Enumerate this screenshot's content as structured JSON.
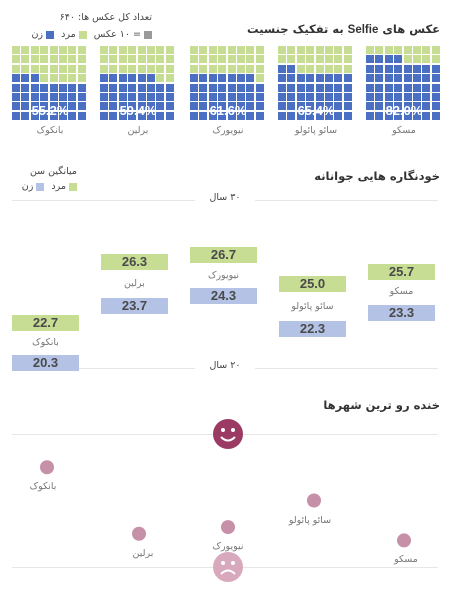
{
  "colors": {
    "male": "#c7dd94",
    "female": "#4b6fc2",
    "unit": "#9a9a9a",
    "female_bar": "#b4c2e6",
    "dot": "#c590a8",
    "face": "#9b3a63",
    "face_sad": "#d8a9bc",
    "divider": "#e6e6e6"
  },
  "section1": {
    "title_prefix": "عکس های",
    "title_word": "Selfie",
    "title_suffix": "به تفکیک جنسیت",
    "total_label": "تعداد کل عکس ها: ۶۴۰",
    "legend_unit": "= ۱۰ عکس",
    "legend_male": "مرد",
    "legend_female": "زن"
  },
  "section2": {
    "title": "خودنگاره هایی جوانانه",
    "legend_title": "میانگین سن",
    "legend_male": "مرد",
    "legend_female": "زن",
    "top_gridline_label": "۳۰ سال",
    "bottom_gridline_label": "۲۰ سال"
  },
  "section3": {
    "title": "خنده رو ترین شهرها",
    "happy_icon": "smiley-face-icon",
    "sad_icon": "sad-face-icon"
  },
  "chart_data": [
    {
      "type": "waffle",
      "title": "عکس های Selfie به تفکیک جنسیت",
      "unit": 10,
      "categories": [
        "بانکوک",
        "برلین",
        "نیویورک",
        "سائو پائولو",
        "مسکو"
      ],
      "female_share_labels": [
        "55.2%",
        "59.4%",
        "61.6%",
        "65.4%",
        "82.0%"
      ],
      "female_share": [
        55.2,
        59.4,
        61.6,
        65.4,
        82.0
      ]
    },
    {
      "type": "bar",
      "title": "خودنگاره هایی جوانانه",
      "ylabel": "میانگین سن",
      "ylim": [
        20,
        30
      ],
      "categories": [
        "بانکوک",
        "برلین",
        "نیویورک",
        "سائو پائولو",
        "مسکو"
      ],
      "series": [
        {
          "name": "مرد",
          "values": [
            22.7,
            26.3,
            26.7,
            25.0,
            25.7
          ]
        },
        {
          "name": "زن",
          "values": [
            20.3,
            23.7,
            24.3,
            22.3,
            23.3
          ]
        }
      ]
    },
    {
      "type": "scatter",
      "title": "خنده رو ترین شهرها",
      "categories": [
        "بانکوک",
        "برلین",
        "نیویورک",
        "سائو پائولو",
        "مسکو"
      ],
      "smile_level": [
        0.75,
        0.25,
        0.3,
        0.5,
        0.2
      ]
    }
  ]
}
